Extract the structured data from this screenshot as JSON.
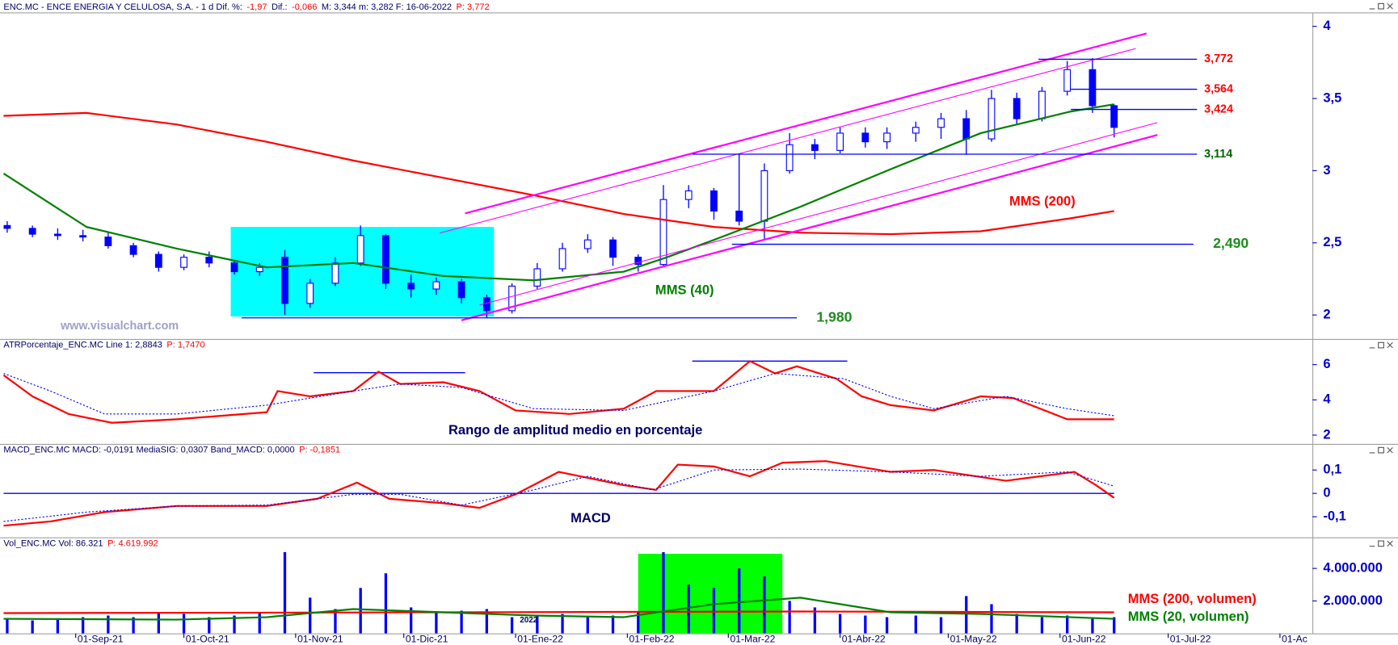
{
  "chart_data": [
    {
      "type": "candlestick",
      "header": [
        {
          "text": "ENC.MC - ENCE ENERGIA Y CELULOSA, S.A. -  1 d  Dif. %:",
          "color": "#000066"
        },
        {
          "text": "-1,97",
          "color": "#ff0000"
        },
        {
          "text": "Dif.:",
          "color": "#000066"
        },
        {
          "text": "-0,066",
          "color": "#ff0000"
        },
        {
          "text": "M: 3,344  m: 3,282  F: 16-06-2022",
          "color": "#000066"
        },
        {
          "text": "P: 3,772",
          "color": "#ff0000"
        }
      ],
      "x": [
        "2021-08-13",
        "2021-08-20",
        "2021-08-27",
        "2021-09-03",
        "2021-09-10",
        "2021-09-17",
        "2021-09-24",
        "2021-10-01",
        "2021-10-08",
        "2021-10-15",
        "2021-10-22",
        "2021-10-29",
        "2021-11-05",
        "2021-11-12",
        "2021-11-19",
        "2021-11-26",
        "2021-12-03",
        "2021-12-10",
        "2021-12-17",
        "2021-12-24",
        "2021-12-31",
        "2022-01-07",
        "2022-01-14",
        "2022-01-21",
        "2022-01-28",
        "2022-02-04",
        "2022-02-11",
        "2022-02-18",
        "2022-02-25",
        "2022-03-04",
        "2022-03-11",
        "2022-03-18",
        "2022-03-25",
        "2022-04-01",
        "2022-04-08",
        "2022-04-14",
        "2022-04-22",
        "2022-04-29",
        "2022-05-06",
        "2022-05-13",
        "2022-05-20",
        "2022-05-27",
        "2022-06-03",
        "2022-06-10",
        "2022-06-16"
      ],
      "open": [
        2.62,
        2.6,
        2.56,
        2.55,
        2.54,
        2.48,
        2.42,
        2.33,
        2.4,
        2.36,
        2.3,
        2.4,
        2.08,
        2.22,
        2.36,
        2.55,
        2.22,
        2.18,
        2.23,
        2.12,
        2.03,
        2.2,
        2.32,
        2.46,
        2.52,
        2.4,
        2.35,
        2.8,
        2.86,
        2.72,
        2.65,
        3.0,
        3.18,
        3.14,
        3.26,
        3.2,
        3.26,
        3.3,
        3.36,
        3.22,
        3.5,
        3.36,
        3.55,
        3.7,
        3.45
      ],
      "high": [
        2.65,
        2.62,
        2.6,
        2.59,
        2.57,
        2.5,
        2.44,
        2.42,
        2.44,
        2.38,
        2.36,
        2.45,
        2.25,
        2.4,
        2.62,
        2.56,
        2.28,
        2.26,
        2.25,
        2.14,
        2.22,
        2.36,
        2.5,
        2.56,
        2.54,
        2.42,
        2.9,
        2.9,
        2.88,
        3.12,
        3.05,
        3.26,
        3.22,
        3.3,
        3.3,
        3.3,
        3.34,
        3.4,
        3.42,
        3.56,
        3.54,
        3.58,
        3.76,
        3.78,
        3.46
      ],
      "low": [
        2.57,
        2.54,
        2.52,
        2.51,
        2.46,
        2.4,
        2.3,
        2.31,
        2.33,
        2.28,
        2.27,
        2.0,
        2.05,
        2.2,
        2.34,
        2.18,
        2.12,
        2.14,
        2.08,
        1.98,
        2.01,
        2.18,
        2.3,
        2.43,
        2.34,
        2.3,
        2.34,
        2.74,
        2.66,
        2.62,
        2.52,
        2.98,
        3.08,
        3.12,
        3.16,
        3.15,
        3.2,
        3.22,
        3.11,
        3.2,
        3.32,
        3.34,
        3.52,
        3.4,
        3.23
      ],
      "close": [
        2.6,
        2.56,
        2.55,
        2.54,
        2.48,
        2.42,
        2.33,
        2.4,
        2.36,
        2.3,
        2.33,
        2.08,
        2.22,
        2.36,
        2.55,
        2.22,
        2.18,
        2.23,
        2.12,
        2.03,
        2.2,
        2.32,
        2.46,
        2.52,
        2.4,
        2.35,
        2.8,
        2.86,
        2.72,
        2.65,
        3.0,
        3.18,
        3.14,
        3.26,
        3.2,
        3.26,
        3.3,
        3.36,
        3.22,
        3.5,
        3.36,
        3.55,
        3.7,
        3.45,
        3.3
      ],
      "color": "#0000ff",
      "up_color": "#ffffff",
      "down_color": "#0000ff",
      "ylim": [
        1.84,
        4.09
      ],
      "yticks": [
        4,
        {
          "value": 3.5,
          "label": "3,5"
        },
        3,
        {
          "value": 2.5,
          "label": "2,5"
        },
        2
      ],
      "series": [
        {
          "name": "MMS (200)",
          "color": "#ff0000",
          "x": [
            "2021-08-12",
            "2021-09-04",
            "2021-09-29",
            "2021-10-24",
            "2021-11-17",
            "2021-12-12",
            "2022-01-06",
            "2022-01-31",
            "2022-02-25",
            "2022-03-21",
            "2022-04-15",
            "2022-05-10",
            "2022-06-04",
            "2022-06-16"
          ],
          "values": [
            3.38,
            3.4,
            3.32,
            3.2,
            3.07,
            2.95,
            2.83,
            2.7,
            2.61,
            2.57,
            2.56,
            2.58,
            2.67,
            2.72
          ]
        },
        {
          "name": "MMS (40)",
          "color": "#008000",
          "x": [
            "2021-08-12",
            "2021-09-04",
            "2021-09-29",
            "2021-10-24",
            "2021-11-17",
            "2021-12-12",
            "2022-01-06",
            "2022-01-31",
            "2022-02-12",
            "2022-02-25",
            "2022-03-21",
            "2022-04-15",
            "2022-05-10",
            "2022-06-04",
            "2022-06-16"
          ],
          "values": [
            2.98,
            2.61,
            2.46,
            2.33,
            2.36,
            2.27,
            2.24,
            2.3,
            2.4,
            2.52,
            2.75,
            3.01,
            3.26,
            3.41,
            3.46
          ]
        }
      ],
      "levels": [
        {
          "value": 3.772,
          "label": "3,772",
          "color": "#ff0000",
          "x": [
            "2022-05-26",
            "2022-07-09"
          ]
        },
        {
          "value": 3.564,
          "label": "3,564",
          "color": "#ff0000",
          "x": [
            "2022-06-04",
            "2022-07-09"
          ]
        },
        {
          "value": 3.424,
          "label": "3,424",
          "color": "#ff0000",
          "x": [
            "2022-06-04",
            "2022-07-09"
          ]
        },
        {
          "value": 3.114,
          "label": "3,114",
          "color": "#006400",
          "x": [
            "2022-02-19",
            "2022-07-09"
          ]
        },
        {
          "value": 2.49,
          "label": "2,490",
          "color": "#1e8c1e",
          "x": [
            "2022-03-02",
            "2022-07-08"
          ]
        },
        {
          "value": 1.98,
          "label": "1,980",
          "color": "#1e8c1e",
          "x": [
            "2021-10-17",
            "2022-03-20"
          ]
        }
      ],
      "line_color": "#0000ff",
      "trendlines": [
        {
          "x": [
            "2021-12-18",
            "2022-06-25"
          ],
          "y": [
            2.704,
            3.951
          ]
        },
        {
          "x": [
            "2021-12-11",
            "2022-06-22"
          ],
          "y": [
            2.568,
            3.846
          ]
        },
        {
          "x": [
            "2021-12-17",
            "2022-06-28"
          ],
          "y": [
            1.963,
            3.247
          ]
        },
        {
          "x": [
            "2021-12-22",
            "2022-06-28"
          ],
          "y": [
            2.068,
            3.333
          ]
        }
      ],
      "trend_color": "#ff00ff",
      "highlight": {
        "x": [
          "2021-10-14",
          "2021-12-26"
        ],
        "y": [
          1.99,
          2.61
        ],
        "color": "#00ffff"
      },
      "annotations": [
        {
          "text": "www.visualchart.com",
          "color": "#a0a0c8"
        }
      ]
    },
    {
      "type": "line",
      "header": [
        {
          "text": "ATRPorcentaje_ENC.MC  Line 1: 2,8843",
          "color": "#000066"
        },
        {
          "text": "P: 1,7470",
          "color": "#ff0000"
        }
      ],
      "ylim": [
        1.55,
        6.85
      ],
      "yticks": [
        6,
        4,
        2
      ],
      "series": [
        {
          "color": "#ff0000",
          "x": [
            "2021-08-12",
            "2021-08-20",
            "2021-08-30",
            "2021-09-11",
            "2021-09-29",
            "2021-10-24",
            "2021-10-27",
            "2021-11-05",
            "2021-11-17",
            "2021-11-24",
            "2021-11-30",
            "2021-12-12",
            "2021-12-22",
            "2022-01-01",
            "2022-01-16",
            "2022-01-31",
            "2022-02-09",
            "2022-02-25",
            "2022-03-07",
            "2022-03-14",
            "2022-03-20",
            "2022-03-31",
            "2022-04-07",
            "2022-04-15",
            "2022-04-27",
            "2022-05-10",
            "2022-05-19",
            "2022-06-03",
            "2022-06-16"
          ],
          "values": [
            5.4,
            4.2,
            3.2,
            2.7,
            2.9,
            3.3,
            4.5,
            4.2,
            4.5,
            5.6,
            4.9,
            5.0,
            4.5,
            3.4,
            3.2,
            3.5,
            4.5,
            4.5,
            6.2,
            5.5,
            5.9,
            5.2,
            4.2,
            3.7,
            3.4,
            4.2,
            4.1,
            2.9,
            2.9
          ]
        },
        {
          "color": "#0000ff",
          "dash": true,
          "x": [
            "2021-08-12",
            "2021-08-25",
            "2021-09-09",
            "2021-09-29",
            "2021-10-24",
            "2021-11-17",
            "2021-11-30",
            "2021-12-17",
            "2022-01-06",
            "2022-01-31",
            "2022-02-25",
            "2022-03-14",
            "2022-04-02",
            "2022-04-15",
            "2022-04-27",
            "2022-05-17",
            "2022-06-03",
            "2022-06-16"
          ],
          "values": [
            5.5,
            4.5,
            3.2,
            3.2,
            3.7,
            4.5,
            4.9,
            4.7,
            3.5,
            3.4,
            4.5,
            5.5,
            5.2,
            4.2,
            3.5,
            4.2,
            3.5,
            3.1
          ]
        }
      ],
      "hlines": [
        {
          "value": 5.54,
          "x": [
            "2021-11-06",
            "2021-12-18"
          ]
        },
        {
          "value": 6.2,
          "x": [
            "2022-02-19",
            "2022-04-03"
          ]
        }
      ],
      "line_color": "#0000ff",
      "annotations": [
        {
          "text": "Rango de amplitud medio en porcentaje",
          "color": "#000066"
        }
      ]
    },
    {
      "type": "line",
      "header": [
        {
          "text": "MACD_ENC.MC  MACD: -0,0191  MediaSIG: 0,0307  Band_MACD: 0,0000",
          "color": "#000066"
        },
        {
          "text": "P: -0,1851",
          "color": "#ff0000"
        }
      ],
      "ylim": [
        -0.188,
        0.162
      ],
      "yticks": [
        {
          "value": 0.1,
          "label": "0,1"
        },
        0,
        {
          "value": -0.1,
          "label": "-0,1"
        }
      ],
      "series": [
        {
          "color": "#ff0000",
          "x": [
            "2021-08-12",
            "2021-08-25",
            "2021-09-09",
            "2021-09-29",
            "2021-10-24",
            "2021-11-07",
            "2021-11-18",
            "2021-11-27",
            "2021-12-12",
            "2021-12-22",
            "2022-01-01",
            "2022-01-13",
            "2022-01-31",
            "2022-02-09",
            "2022-02-15",
            "2022-02-25",
            "2022-03-07",
            "2022-03-16",
            "2022-03-28",
            "2022-04-15",
            "2022-04-27",
            "2022-05-17",
            "2022-06-05",
            "2022-06-11",
            "2022-06-16"
          ],
          "values": [
            -0.138,
            -0.12,
            -0.08,
            -0.054,
            -0.054,
            -0.023,
            0.046,
            -0.023,
            -0.042,
            -0.062,
            -0.004,
            0.092,
            0.035,
            0.015,
            0.123,
            0.115,
            0.073,
            0.131,
            0.138,
            0.092,
            0.1,
            0.054,
            0.092,
            0.035,
            -0.019
          ]
        },
        {
          "color": "#0000ff",
          "dash": true,
          "x": [
            "2021-08-12",
            "2021-09-04",
            "2021-09-29",
            "2021-10-24",
            "2021-11-17",
            "2021-11-30",
            "2021-12-17",
            "2022-01-06",
            "2022-01-21",
            "2022-02-08",
            "2022-02-25",
            "2022-03-21",
            "2022-04-15",
            "2022-05-10",
            "2022-06-03",
            "2022-06-16"
          ],
          "values": [
            -0.12,
            -0.08,
            -0.054,
            -0.05,
            -0.004,
            -0.004,
            -0.05,
            0.015,
            0.073,
            0.015,
            0.1,
            0.104,
            0.092,
            0.073,
            0.092,
            0.031
          ]
        }
      ],
      "hlines": [
        {
          "value": 0,
          "x": [
            "2021-08-12",
            "2022-06-16"
          ]
        }
      ],
      "line_color": "#0000ff",
      "annotations": [
        {
          "text": "MACD",
          "color": "#000066"
        }
      ]
    },
    {
      "type": "bar",
      "header": [
        {
          "text": "Vol_ENC.MC  Vol: 86.321",
          "color": "#000066"
        },
        {
          "text": "P: 4.619.992",
          "color": "#ff0000"
        }
      ],
      "values": [
        900000,
        800000,
        900000,
        1000000,
        1100000,
        1000000,
        1300000,
        1200000,
        1000000,
        1100000,
        1300000,
        5000000,
        2200000,
        1500000,
        2800000,
        3700000,
        1600000,
        1300000,
        1400000,
        1500000,
        1000000,
        1100000,
        1200000,
        1000000,
        1100000,
        1300000,
        5000000,
        3000000,
        2800000,
        4000000,
        3500000,
        2000000,
        1600000,
        1200000,
        1100000,
        1000000,
        1100000,
        1000000,
        2300000,
        1800000,
        1200000,
        1000000,
        1100000,
        900000,
        1000000
      ],
      "color": "#0000ff",
      "ylim": [
        0,
        5200000
      ],
      "yticks": [
        {
          "value": 4000000,
          "label": "4.000.000"
        },
        {
          "value": 2000000,
          "label": "2.000.000"
        }
      ],
      "series": [
        {
          "name": "MMS (200, volumen)",
          "color": "#ff0000",
          "x": [
            "2021-08-12",
            "2021-12-12",
            "2022-03-21",
            "2022-06-16"
          ],
          "values": [
            1250000,
            1300000,
            1350000,
            1300000
          ]
        },
        {
          "name": "MMS (20, volumen)",
          "color": "#008000",
          "x": [
            "2021-08-12",
            "2021-09-29",
            "2021-10-24",
            "2021-11-17",
            "2021-12-12",
            "2022-01-06",
            "2022-01-31",
            "2022-02-25",
            "2022-03-21",
            "2022-04-15",
            "2022-05-10",
            "2022-06-04",
            "2022-06-16"
          ],
          "values": [
            900000,
            850000,
            1000000,
            1500000,
            1300000,
            1100000,
            1000000,
            1800000,
            2200000,
            1300000,
            1200000,
            1000000,
            900000
          ]
        }
      ],
      "highlight": {
        "x": [
          "2022-02-04",
          "2022-03-16"
        ],
        "y": [
          0,
          4900000
        ],
        "color": "#00ff00"
      },
      "xlim": [
        "2021-08-11",
        "2022-08-10"
      ],
      "xticks": [
        {
          "value": "2021-09-01",
          "label": "01-Sep-21"
        },
        {
          "value": "2021-10-01",
          "label": "01-Oct-21"
        },
        {
          "value": "2021-11-01",
          "label": "01-Nov-21"
        },
        {
          "value": "2021-12-01",
          "label": "01-Dic-21"
        },
        {
          "value": "2022-01-01",
          "label": "01-Ene-22"
        },
        {
          "value": "2022-02-01",
          "label": "01-Feb-22"
        },
        {
          "value": "2022-03-01",
          "label": "01-Mar-22"
        },
        {
          "value": "2022-04-01",
          "label": "01-Abr-22"
        },
        {
          "value": "2022-05-01",
          "label": "01-May-22"
        },
        {
          "value": "2022-06-01",
          "label": "01-Jun-22"
        },
        {
          "value": "2022-07-01",
          "label": "01-Jul-22"
        },
        {
          "value": "2022-08-01",
          "label": "01-Ac"
        }
      ],
      "annotations": [
        {
          "text": "2022",
          "color": "#000066"
        }
      ]
    }
  ]
}
